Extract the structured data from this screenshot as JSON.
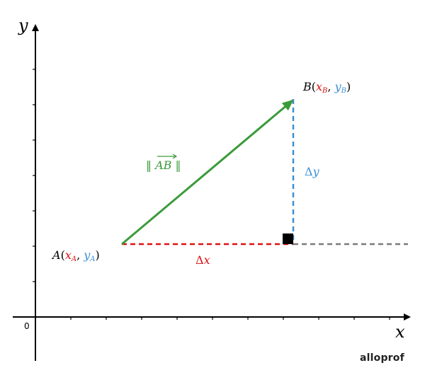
{
  "axes": {
    "x_label": "x",
    "y_label": "y",
    "origin_label": "0"
  },
  "points": {
    "A": {
      "name": "A",
      "x_sym": "x",
      "x_sub": "A",
      "y_sym": "y",
      "y_sub": "A"
    },
    "B": {
      "name": "B",
      "x_sym": "x",
      "x_sub": "B",
      "y_sym": "y",
      "y_sub": "B"
    }
  },
  "labels": {
    "norm_open": "‖ ",
    "norm_vec": "AB",
    "norm_close": " ‖",
    "delta_x": "Δx",
    "delta_y": "Δy",
    "delta_sym": "Δ",
    "x_sym": "x",
    "y_sym": "y",
    "paren_open": "(",
    "comma": ", ",
    "paren_close": ")"
  },
  "logo": {
    "text": "alloprof"
  },
  "colors": {
    "vector": "#3a9b3a",
    "delta_x": "#dd1111",
    "delta_y": "#3d8fd1",
    "extension": "#7a7a7a",
    "axis": "#000000"
  }
}
